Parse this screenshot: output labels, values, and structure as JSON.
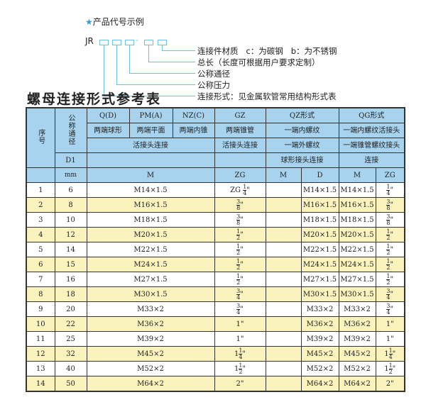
{
  "legend": {
    "title": "产品代号示例",
    "star_icon": "star-icon",
    "prefix": "JR",
    "separator": "-",
    "labels": [
      "连接件材质   c：为碳钢   b：为不锈钢",
      "总长（长度可根据用户要求定制）",
      "公称通径",
      "公称压力",
      "连接形式：见金属软管常用结构形式表"
    ]
  },
  "table_title": "螺母连接形式参考表",
  "header": {
    "seq": "序号",
    "nominal": "公称通径",
    "d1": "D1",
    "mm": "mm",
    "qd": "Q(D)",
    "pm": "PM(A)",
    "nz": "NZ(C)",
    "gz": "GZ",
    "qz": "QZ形式",
    "qg": "QG形式",
    "qd2": "两端球形",
    "pm2": "两端平面",
    "nz2": "两端内锥",
    "gz2": "两端锥管",
    "qz2": "一端内螺纹",
    "qg2": "一端内螺纹活接头",
    "union": "活接头连接",
    "gz3": "活接头连接",
    "qz3": "一端外螺纹",
    "qg3": "一端锥管螺纹接头",
    "qz4": "球形接头连接",
    "qg4": "连接",
    "m": "M",
    "zg": "ZG",
    "qz_m": "M",
    "qz_d": "D",
    "qg_m": "M",
    "qg_zg": "ZG"
  },
  "colors": {
    "header": "#a8d3ef",
    "row_alt": "#fbf3be",
    "line": "#6cc2e4"
  },
  "rows": [
    {
      "no": "1",
      "dn": "6",
      "m": "M14×1.5",
      "zg": {
        "pre": "ZG",
        "w": "",
        "n": "1",
        "d": "4"
      },
      "qz_m": "",
      "qz_d": "M14×1.5",
      "qg_m": "M14×1.5",
      "qg_zg": {
        "w": "",
        "n": "1",
        "d": "4"
      }
    },
    {
      "no": "2",
      "dn": "8",
      "m": "M16×1.5",
      "zg": {
        "w": "",
        "n": "3",
        "d": "8"
      },
      "qz_m": "",
      "qz_d": "M16×1.5",
      "qg_m": "M16×1.5",
      "qg_zg": {
        "w": "",
        "n": "3",
        "d": "8"
      }
    },
    {
      "no": "3",
      "dn": "10",
      "m": "M18×1.5",
      "zg": {
        "w": "",
        "n": "3",
        "d": "8"
      },
      "qz_m": "",
      "qz_d": "M18×1.5",
      "qg_m": "M18×1.5",
      "qg_zg": {
        "w": "",
        "n": "3",
        "d": "8"
      }
    },
    {
      "no": "4",
      "dn": "12",
      "m": "M20×1.5",
      "zg": {
        "w": "",
        "n": "1",
        "d": "2"
      },
      "qz_m": "",
      "qz_d": "M20×1.5",
      "qg_m": "M20×1.5",
      "qg_zg": {
        "w": "",
        "n": "1",
        "d": "2"
      }
    },
    {
      "no": "5",
      "dn": "14",
      "m": "M22×1.5",
      "zg": {
        "w": "",
        "n": "1",
        "d": "2"
      },
      "qz_m": "",
      "qz_d": "M22×1.5",
      "qg_m": "M22×1.5",
      "qg_zg": {
        "w": "",
        "n": "1",
        "d": "2"
      }
    },
    {
      "no": "6",
      "dn": "15",
      "m": "M24×1.5",
      "zg": {
        "w": "",
        "n": "1",
        "d": "2"
      },
      "qz_m": "",
      "qz_d": "M24×1.5",
      "qg_m": "M24×1.5",
      "qg_zg": {
        "w": "",
        "n": "1",
        "d": "2"
      }
    },
    {
      "no": "7",
      "dn": "16",
      "m": "M27×1.5",
      "zg": {
        "w": "",
        "n": "1",
        "d": "2"
      },
      "qz_m": "",
      "qz_d": "M27×1.5",
      "qg_m": "M27×1.5",
      "qg_zg": {
        "w": "",
        "n": "1",
        "d": "2"
      }
    },
    {
      "no": "8",
      "dn": "18",
      "m": "M30×1.5",
      "zg": {
        "w": "",
        "n": "3",
        "d": "4"
      },
      "qz_m": "",
      "qz_d": "M30×1.5",
      "qg_m": "M30×1.5",
      "qg_zg": {
        "w": "",
        "n": "3",
        "d": "4"
      }
    },
    {
      "no": "9",
      "dn": "20",
      "m": "M33×2",
      "zg": {
        "w": "",
        "n": "3",
        "d": "4"
      },
      "qz_m": "",
      "qz_d": "M33×2",
      "qg_m": "M33×2",
      "qg_zg": {
        "w": "",
        "n": "3",
        "d": "4"
      }
    },
    {
      "no": "10",
      "dn": "22",
      "m": "M36×2",
      "zg": {
        "w": "1"
      },
      "qz_m": "",
      "qz_d": "M36×2",
      "qg_m": "M36×2",
      "qg_zg": {
        "w": "1"
      }
    },
    {
      "no": "11",
      "dn": "25",
      "m": "M39×2",
      "zg": {
        "w": "1"
      },
      "qz_m": "",
      "qz_d": "M39×2",
      "qg_m": "M39×2",
      "qg_zg": {
        "w": "1"
      }
    },
    {
      "no": "12",
      "dn": "32",
      "m": "M45×2",
      "zg": {
        "w": "1",
        "n": "1",
        "d": "4"
      },
      "qz_m": "",
      "qz_d": "M45×2",
      "qg_m": "M45×2",
      "qg_zg": {
        "w": "1",
        "n": "1",
        "d": "4"
      }
    },
    {
      "no": "13",
      "dn": "40",
      "m": "M52×2",
      "zg": {
        "w": "1",
        "n": "1",
        "d": "2"
      },
      "qz_m": "",
      "qz_d": "M52×2",
      "qg_m": "M52×2",
      "qg_zg": {
        "w": "1",
        "n": "1",
        "d": "2"
      }
    },
    {
      "no": "14",
      "dn": "50",
      "m": "M64×2",
      "zg": {
        "w": "2"
      },
      "qz_m": "",
      "qz_d": "M64×2",
      "qg_m": "M64×2",
      "qg_zg": {
        "w": "2"
      }
    }
  ]
}
